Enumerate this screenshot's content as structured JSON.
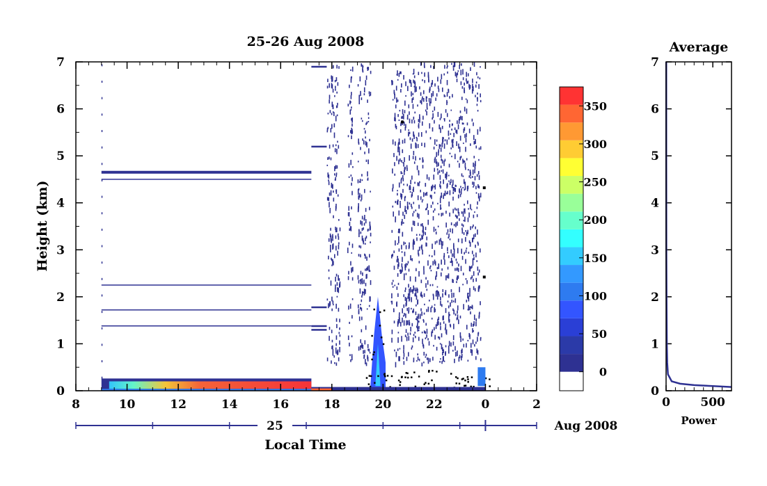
{
  "chart_data": [
    {
      "type": "heatmap",
      "title": "25-26 Aug 2008",
      "xlabel": "Local Time",
      "ylabel": "Height (km)",
      "x_ticks": [
        "8",
        "10",
        "12",
        "14",
        "16",
        "18",
        "20",
        "22",
        "0",
        "2"
      ],
      "y_ticks": [
        "0",
        "1",
        "2",
        "3",
        "4",
        "5",
        "6",
        "7"
      ],
      "ylim": [
        0,
        7
      ],
      "xlim_hours": [
        8,
        26
      ],
      "date_axis": {
        "day_label": "25",
        "month_label": "Aug 2008"
      },
      "colorbar": {
        "ticks": [
          "0",
          "50",
          "100",
          "150",
          "200",
          "250",
          "300",
          "350"
        ],
        "range": [
          -25,
          375
        ],
        "colors": [
          "#2e3192",
          "#2b3aa8",
          "#2a3fd6",
          "#3355ff",
          "#2e7bf0",
          "#3399ff",
          "#33ccff",
          "#33ffff",
          "#66ffcc",
          "#99ff99",
          "#ccff66",
          "#ffff33",
          "#ffcc33",
          "#ff9933",
          "#ff6633",
          "#ff3333"
        ]
      },
      "features": {
        "horizontal_lines_km": [
          4.65,
          4.5,
          2.25,
          1.72,
          1.38,
          0.25
        ],
        "noise_blocks_hours": [
          [
            17.8,
            18.3
          ],
          [
            18.6,
            18.8
          ],
          [
            19.0,
            19.5
          ],
          [
            20.3,
            23.8
          ]
        ],
        "plume_peak": {
          "time_hours": 19.8,
          "height_km": 2.0
        },
        "surface_layer_km": [
          0,
          0.25
        ]
      }
    },
    {
      "type": "line",
      "title": "Average",
      "xlabel": "Power",
      "x_ticks": [
        "0",
        "500"
      ],
      "y_ticks": [
        "0",
        "1",
        "2",
        "3",
        "4",
        "5",
        "6",
        "7"
      ],
      "xlim": [
        0,
        700
      ],
      "ylim": [
        0,
        7
      ],
      "series": [
        {
          "points": [
            [
              2,
              7
            ],
            [
              2,
              5
            ],
            [
              3,
              3
            ],
            [
              5,
              2
            ],
            [
              8,
              1
            ],
            [
              12,
              0.6
            ],
            [
              20,
              0.35
            ],
            [
              60,
              0.2
            ],
            [
              150,
              0.15
            ],
            [
              300,
              0.12
            ],
            [
              500,
              0.1
            ],
            [
              700,
              0.08
            ]
          ]
        }
      ]
    }
  ]
}
